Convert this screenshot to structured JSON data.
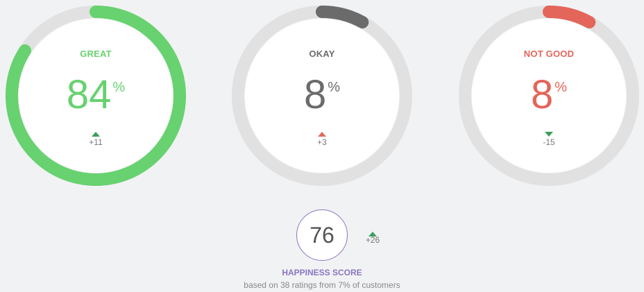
{
  "gauges": [
    {
      "label": "GREAT",
      "value": "84",
      "unit": "%",
      "fraction": 0.84,
      "trend": "up",
      "delta": "+11",
      "color": "#67d26f",
      "arrow_color": "#3a9f5a"
    },
    {
      "label": "OKAY",
      "value": "8",
      "unit": "%",
      "fraction": 0.08,
      "trend": "up",
      "delta": "+3",
      "color": "#6b6b6b",
      "arrow_color": "#e06a5c"
    },
    {
      "label": "NOT GOOD",
      "value": "8",
      "unit": "%",
      "fraction": 0.08,
      "trend": "down",
      "delta": "-15",
      "color": "#e4655a",
      "arrow_color": "#3a9f5a"
    }
  ],
  "happiness": {
    "score": "76",
    "trend": "up",
    "delta": "+26",
    "title": "HAPPINESS SCORE",
    "subtitle": "based on 38 ratings from 7% of customers",
    "accent_color": "#8a76c0",
    "arrow_color": "#3a9f5a"
  },
  "track_color": "#e1e1e1"
}
